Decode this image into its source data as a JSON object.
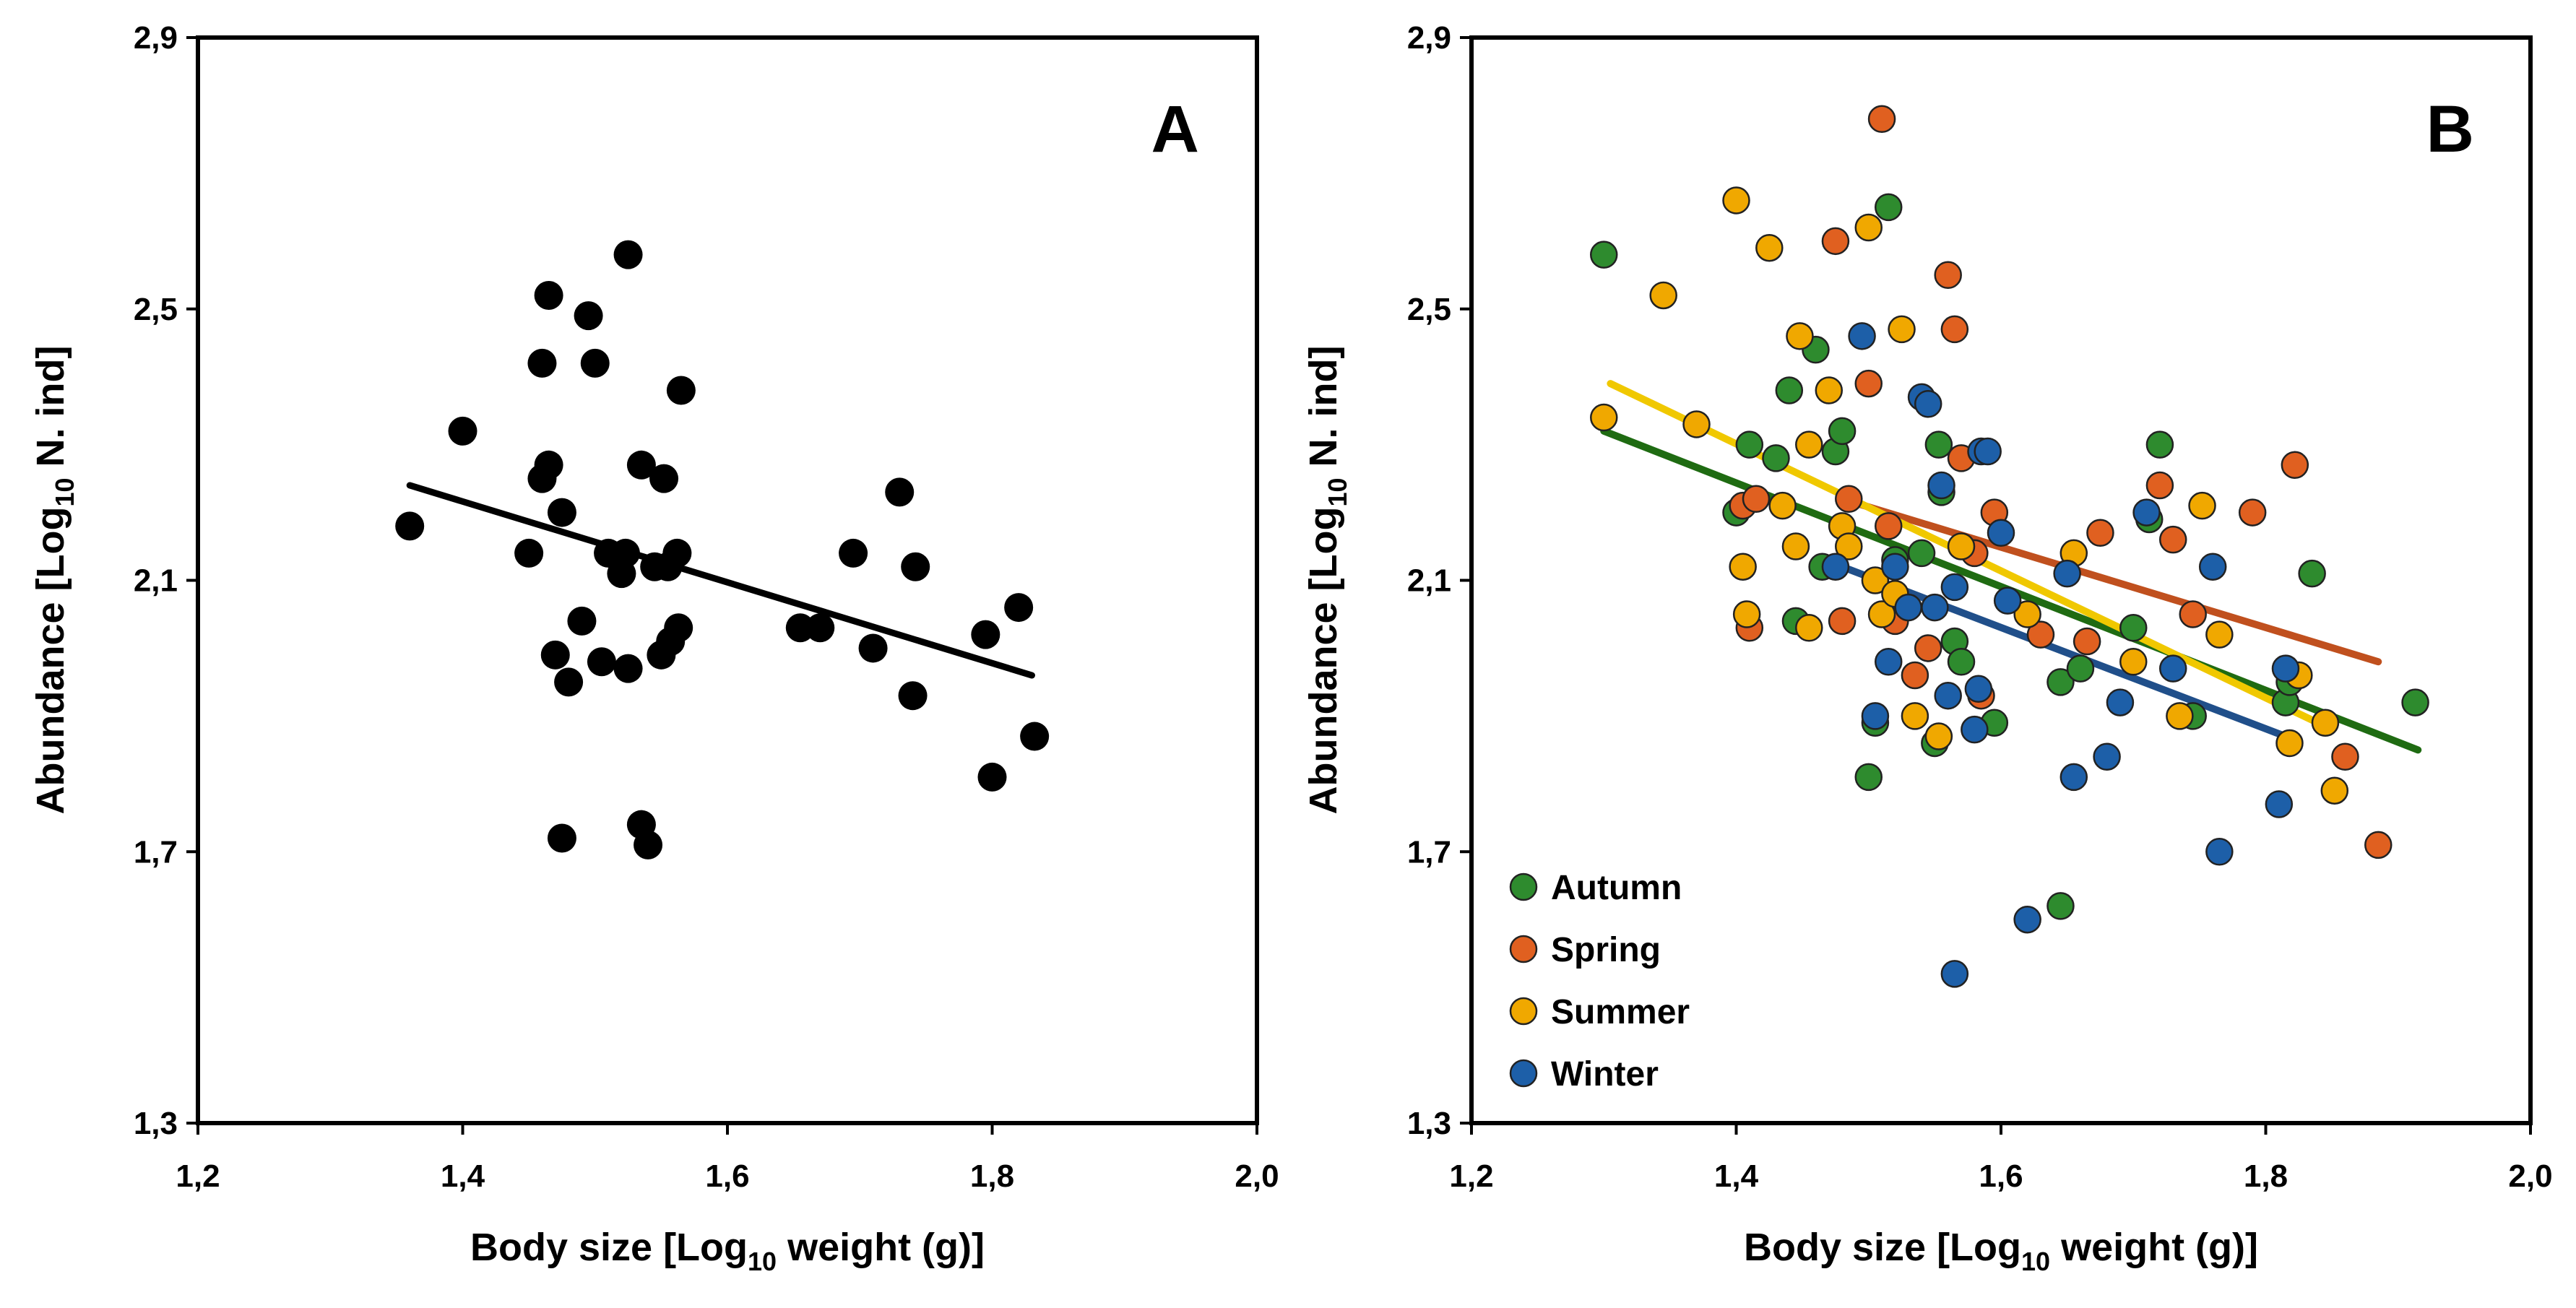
{
  "chart_data": [
    {
      "type": "scatter",
      "panel": "A",
      "xlabel_prefix": "Body size [Log",
      "xlabel_sub": "10",
      "xlabel_suffix": " weight (g)]",
      "ylabel_prefix": "Abundance [Log",
      "ylabel_sub": "10",
      "ylabel_suffix": " N. ind]",
      "xlim": [
        1.2,
        2.0
      ],
      "ylim": [
        1.3,
        2.9
      ],
      "xticks": [
        "1,2",
        "1,4",
        "1,6",
        "1,8",
        "2,0"
      ],
      "yticks": [
        "1,3",
        "1,7",
        "2,1",
        "2,5",
        "2,9"
      ],
      "point_color": "#000000",
      "points": [
        {
          "x": 1.36,
          "y": 2.18
        },
        {
          "x": 1.4,
          "y": 2.32
        },
        {
          "x": 1.45,
          "y": 2.14
        },
        {
          "x": 1.46,
          "y": 2.25
        },
        {
          "x": 1.465,
          "y": 2.27
        },
        {
          "x": 1.46,
          "y": 2.42
        },
        {
          "x": 1.465,
          "y": 2.52
        },
        {
          "x": 1.47,
          "y": 1.99
        },
        {
          "x": 1.475,
          "y": 2.2
        },
        {
          "x": 1.48,
          "y": 1.95
        },
        {
          "x": 1.475,
          "y": 1.72
        },
        {
          "x": 1.49,
          "y": 2.04
        },
        {
          "x": 1.495,
          "y": 2.49
        },
        {
          "x": 1.5,
          "y": 2.42
        },
        {
          "x": 1.505,
          "y": 1.98
        },
        {
          "x": 1.51,
          "y": 2.14
        },
        {
          "x": 1.52,
          "y": 2.11
        },
        {
          "x": 1.523,
          "y": 2.14
        },
        {
          "x": 1.525,
          "y": 1.97
        },
        {
          "x": 1.525,
          "y": 2.58
        },
        {
          "x": 1.535,
          "y": 2.27
        },
        {
          "x": 1.535,
          "y": 1.74
        },
        {
          "x": 1.54,
          "y": 1.71
        },
        {
          "x": 1.545,
          "y": 2.12
        },
        {
          "x": 1.55,
          "y": 1.99
        },
        {
          "x": 1.552,
          "y": 2.25
        },
        {
          "x": 1.555,
          "y": 2.12
        },
        {
          "x": 1.557,
          "y": 2.01
        },
        {
          "x": 1.562,
          "y": 2.14
        },
        {
          "x": 1.563,
          "y": 2.03
        },
        {
          "x": 1.565,
          "y": 2.38
        },
        {
          "x": 1.655,
          "y": 2.03
        },
        {
          "x": 1.67,
          "y": 2.03
        },
        {
          "x": 1.695,
          "y": 2.14
        },
        {
          "x": 1.71,
          "y": 2.0
        },
        {
          "x": 1.73,
          "y": 2.23
        },
        {
          "x": 1.74,
          "y": 1.93
        },
        {
          "x": 1.742,
          "y": 2.12
        },
        {
          "x": 1.795,
          "y": 2.02
        },
        {
          "x": 1.8,
          "y": 1.81
        },
        {
          "x": 1.82,
          "y": 2.06
        },
        {
          "x": 1.832,
          "y": 1.87
        }
      ],
      "fit_lines": [
        {
          "color": "#000000",
          "x": [
            1.36,
            1.83
          ],
          "y": [
            2.24,
            1.96
          ]
        }
      ]
    },
    {
      "type": "scatter",
      "panel": "B",
      "xlabel_prefix": "Body size [Log",
      "xlabel_sub": "10",
      "xlabel_suffix": " weight (g)]",
      "ylabel_prefix": "Abundance [Log",
      "ylabel_sub": "10",
      "ylabel_suffix": " N. ind]",
      "xlim": [
        1.2,
        2.0
      ],
      "ylim": [
        1.3,
        2.9
      ],
      "xticks": [
        "1,2",
        "1,4",
        "1,6",
        "1,8",
        "2,0"
      ],
      "yticks": [
        "1,3",
        "1,7",
        "2,1",
        "2,5",
        "2,9"
      ],
      "series": [
        {
          "name": "Autumn",
          "color": "#2e8b2e",
          "line_color": "#1f6b12",
          "points": [
            {
              "x": 1.3,
              "y": 2.58
            },
            {
              "x": 1.4,
              "y": 2.2
            },
            {
              "x": 1.41,
              "y": 2.3
            },
            {
              "x": 1.43,
              "y": 2.28
            },
            {
              "x": 1.44,
              "y": 2.38
            },
            {
              "x": 1.445,
              "y": 2.04
            },
            {
              "x": 1.46,
              "y": 2.44
            },
            {
              "x": 1.465,
              "y": 2.12
            },
            {
              "x": 1.475,
              "y": 2.29
            },
            {
              "x": 1.48,
              "y": 2.32
            },
            {
              "x": 1.5,
              "y": 1.81
            },
            {
              "x": 1.505,
              "y": 1.89
            },
            {
              "x": 1.515,
              "y": 2.65
            },
            {
              "x": 1.52,
              "y": 2.13
            },
            {
              "x": 1.54,
              "y": 2.14
            },
            {
              "x": 1.55,
              "y": 1.86
            },
            {
              "x": 1.553,
              "y": 2.3
            },
            {
              "x": 1.555,
              "y": 2.23
            },
            {
              "x": 1.565,
              "y": 2.01
            },
            {
              "x": 1.57,
              "y": 1.98
            },
            {
              "x": 1.595,
              "y": 1.89
            },
            {
              "x": 1.645,
              "y": 1.95
            },
            {
              "x": 1.645,
              "y": 1.62
            },
            {
              "x": 1.66,
              "y": 1.97
            },
            {
              "x": 1.7,
              "y": 2.03
            },
            {
              "x": 1.712,
              "y": 2.19
            },
            {
              "x": 1.72,
              "y": 2.3
            },
            {
              "x": 1.745,
              "y": 1.9
            },
            {
              "x": 1.815,
              "y": 1.92
            },
            {
              "x": 1.818,
              "y": 1.95
            },
            {
              "x": 1.835,
              "y": 2.11
            },
            {
              "x": 1.913,
              "y": 1.92
            }
          ],
          "fit": {
            "x": [
              1.3,
              1.915
            ],
            "y": [
              2.32,
              1.85
            ]
          }
        },
        {
          "name": "Spring",
          "color": "#e06020",
          "line_color": "#c0501e",
          "points": [
            {
              "x": 1.405,
              "y": 2.21
            },
            {
              "x": 1.41,
              "y": 2.03
            },
            {
              "x": 1.415,
              "y": 2.22
            },
            {
              "x": 1.48,
              "y": 2.04
            },
            {
              "x": 1.475,
              "y": 2.6
            },
            {
              "x": 1.485,
              "y": 2.22
            },
            {
              "x": 1.5,
              "y": 2.39
            },
            {
              "x": 1.51,
              "y": 2.78
            },
            {
              "x": 1.515,
              "y": 2.18
            },
            {
              "x": 1.52,
              "y": 2.04
            },
            {
              "x": 1.535,
              "y": 1.96
            },
            {
              "x": 1.545,
              "y": 2.0
            },
            {
              "x": 1.56,
              "y": 2.55
            },
            {
              "x": 1.565,
              "y": 2.47
            },
            {
              "x": 1.57,
              "y": 2.28
            },
            {
              "x": 1.58,
              "y": 2.14
            },
            {
              "x": 1.595,
              "y": 2.2
            },
            {
              "x": 1.585,
              "y": 1.93
            },
            {
              "x": 1.63,
              "y": 2.02
            },
            {
              "x": 1.665,
              "y": 2.01
            },
            {
              "x": 1.675,
              "y": 2.17
            },
            {
              "x": 1.72,
              "y": 2.24
            },
            {
              "x": 1.73,
              "y": 2.16
            },
            {
              "x": 1.745,
              "y": 2.05
            },
            {
              "x": 1.79,
              "y": 2.2
            },
            {
              "x": 1.822,
              "y": 2.27
            },
            {
              "x": 1.86,
              "y": 1.84
            },
            {
              "x": 1.885,
              "y": 1.71
            }
          ],
          "fit": {
            "x": [
              1.48,
              1.885
            ],
            "y": [
              2.22,
              1.98
            ]
          }
        },
        {
          "name": "Summer",
          "color": "#f0a800",
          "line_color": "#f0c800",
          "points": [
            {
              "x": 1.3,
              "y": 2.34
            },
            {
              "x": 1.345,
              "y": 2.52
            },
            {
              "x": 1.37,
              "y": 2.33
            },
            {
              "x": 1.4,
              "y": 2.66
            },
            {
              "x": 1.405,
              "y": 2.12
            },
            {
              "x": 1.408,
              "y": 2.05
            },
            {
              "x": 1.425,
              "y": 2.59
            },
            {
              "x": 1.435,
              "y": 2.21
            },
            {
              "x": 1.445,
              "y": 2.15
            },
            {
              "x": 1.448,
              "y": 2.46
            },
            {
              "x": 1.455,
              "y": 2.03
            },
            {
              "x": 1.455,
              "y": 2.3
            },
            {
              "x": 1.47,
              "y": 2.38
            },
            {
              "x": 1.48,
              "y": 2.18
            },
            {
              "x": 1.485,
              "y": 2.15
            },
            {
              "x": 1.5,
              "y": 2.62
            },
            {
              "x": 1.505,
              "y": 2.1
            },
            {
              "x": 1.51,
              "y": 2.05
            },
            {
              "x": 1.52,
              "y": 2.08
            },
            {
              "x": 1.525,
              "y": 2.47
            },
            {
              "x": 1.535,
              "y": 1.9
            },
            {
              "x": 1.553,
              "y": 1.87
            },
            {
              "x": 1.57,
              "y": 2.15
            },
            {
              "x": 1.62,
              "y": 2.05
            },
            {
              "x": 1.655,
              "y": 2.14
            },
            {
              "x": 1.7,
              "y": 1.98
            },
            {
              "x": 1.735,
              "y": 1.9
            },
            {
              "x": 1.752,
              "y": 2.21
            },
            {
              "x": 1.765,
              "y": 2.02
            },
            {
              "x": 1.818,
              "y": 1.86
            },
            {
              "x": 1.825,
              "y": 1.96
            },
            {
              "x": 1.845,
              "y": 1.89
            },
            {
              "x": 1.852,
              "y": 1.79
            }
          ],
          "fit": {
            "x": [
              1.305,
              1.85
            ],
            "y": [
              2.39,
              1.88
            ]
          }
        },
        {
          "name": "Winter",
          "color": "#1d5fa8",
          "line_color": "#204f8a",
          "points": [
            {
              "x": 1.475,
              "y": 2.12
            },
            {
              "x": 1.495,
              "y": 2.46
            },
            {
              "x": 1.505,
              "y": 1.9
            },
            {
              "x": 1.515,
              "y": 1.98
            },
            {
              "x": 1.52,
              "y": 2.12
            },
            {
              "x": 1.53,
              "y": 2.06
            },
            {
              "x": 1.54,
              "y": 2.37
            },
            {
              "x": 1.545,
              "y": 2.36
            },
            {
              "x": 1.55,
              "y": 2.06
            },
            {
              "x": 1.555,
              "y": 2.24
            },
            {
              "x": 1.56,
              "y": 1.93
            },
            {
              "x": 1.565,
              "y": 2.09
            },
            {
              "x": 1.565,
              "y": 1.52
            },
            {
              "x": 1.58,
              "y": 1.88
            },
            {
              "x": 1.583,
              "y": 1.94
            },
            {
              "x": 1.585,
              "y": 2.29
            },
            {
              "x": 1.59,
              "y": 2.29
            },
            {
              "x": 1.6,
              "y": 2.17
            },
            {
              "x": 1.605,
              "y": 2.07
            },
            {
              "x": 1.62,
              "y": 1.6
            },
            {
              "x": 1.65,
              "y": 2.11
            },
            {
              "x": 1.655,
              "y": 1.81
            },
            {
              "x": 1.68,
              "y": 1.84
            },
            {
              "x": 1.69,
              "y": 1.92
            },
            {
              "x": 1.71,
              "y": 2.2
            },
            {
              "x": 1.73,
              "y": 1.97
            },
            {
              "x": 1.76,
              "y": 2.12
            },
            {
              "x": 1.765,
              "y": 1.7
            },
            {
              "x": 1.81,
              "y": 1.77
            },
            {
              "x": 1.815,
              "y": 1.97
            }
          ],
          "fit": {
            "x": [
              1.48,
              1.815
            ],
            "y": [
              2.12,
              1.87
            ]
          }
        }
      ],
      "legend_position": "bottom-left"
    }
  ]
}
